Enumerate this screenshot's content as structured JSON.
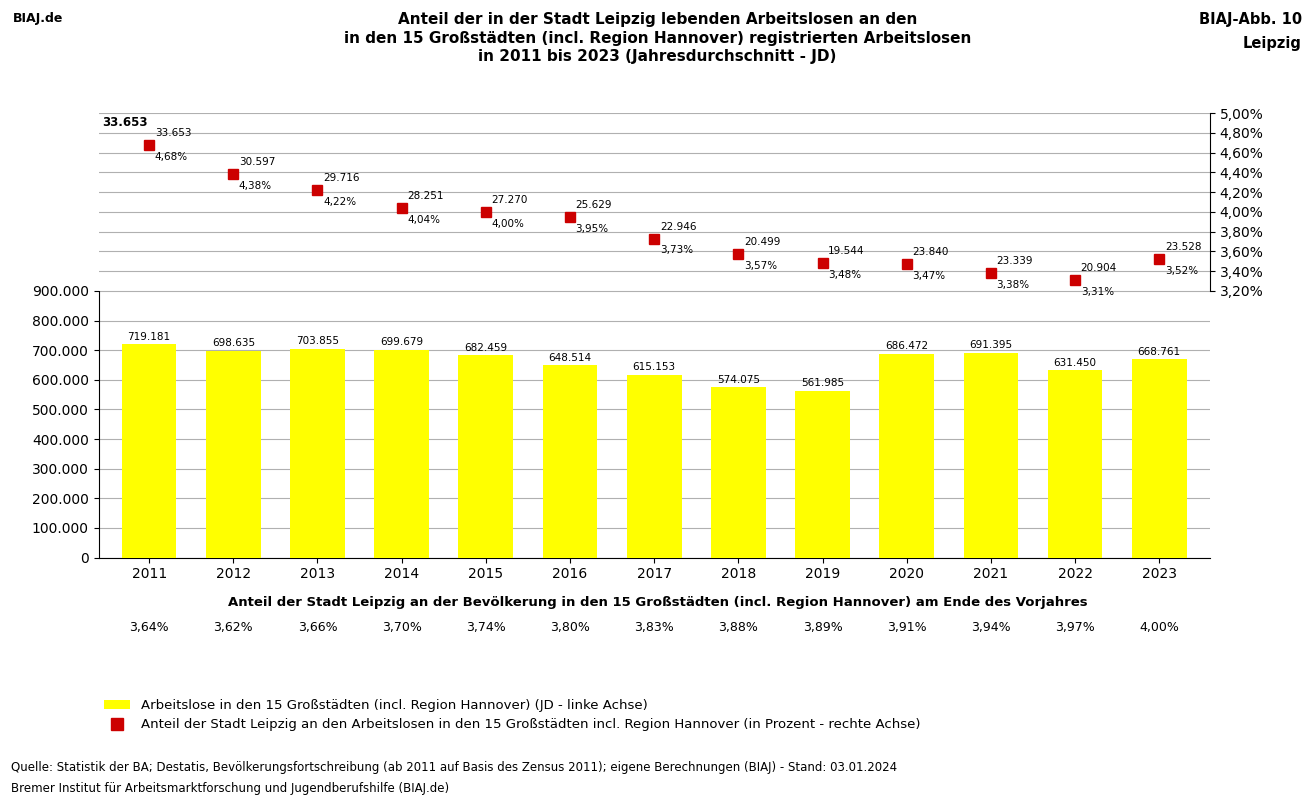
{
  "chart_data": [
    {
      "type": "bar",
      "title": "Anteil der in der Stadt Leipzig lebenden Arbeitslosen an den\nin den 15 Großstädten (incl. Region Hannover) registrierten Arbeitslosen\nin 2011 bis 2023 (Jahresdurchschnitt - JD)",
      "categories": [
        "2011",
        "2012",
        "2013",
        "2014",
        "2015",
        "2016",
        "2017",
        "2018",
        "2019",
        "2020",
        "2021",
        "2022",
        "2023"
      ],
      "series": [
        {
          "name": "Arbeitslose in den 15 Großstädten (incl. Region Hannover) (JD - linke Achse)",
          "color": "#FFFF00",
          "values": [
            719181,
            698635,
            703855,
            699679,
            682459,
            648514,
            615153,
            574075,
            561985,
            686472,
            691395,
            631450,
            668761
          ],
          "value_labels": [
            "719.181",
            "698.635",
            "703.855",
            "699.679",
            "682.459",
            "648.514",
            "615.153",
            "574.075",
            "561.985",
            "686.472",
            "691.395",
            "631.450",
            "668.761"
          ]
        }
      ],
      "ylim": [
        0,
        900000
      ],
      "yticks": [
        0,
        {
          "value": 100000,
          "label": "100.000"
        },
        {
          "value": 200000,
          "label": "200.000"
        },
        {
          "value": 300000,
          "label": "300.000"
        },
        {
          "value": 400000,
          "label": "400.000"
        },
        {
          "value": 500000,
          "label": "500.000"
        },
        {
          "value": 600000,
          "label": "600.000"
        },
        {
          "value": 700000,
          "label": "700.000"
        },
        {
          "value": 800000,
          "label": "800.000"
        },
        {
          "value": 900000,
          "label": "900.000"
        }
      ],
      "grid": true,
      "data_labels": true,
      "legend": "lower left",
      "population_share": {
        "title": "Anteil der Stadt Leipzig an der Bevölkerung in den 15 Großstädten (incl. Region Hannover) am Ende des Vorjahres",
        "values": [
          3.64,
          3.62,
          3.66,
          3.7,
          3.74,
          3.8,
          3.83,
          3.88,
          3.89,
          3.91,
          3.94,
          3.97,
          4.0
        ],
        "value_labels": [
          "3,64%",
          "3,62%",
          "3,66%",
          "3,70%",
          "3,74%",
          "3,80%",
          "3,83%",
          "3,88%",
          "3,89%",
          "3,91%",
          "3,94%",
          "3,97%",
          "4,00%"
        ]
      },
      "annotations": [
        "BIAJ-Abb. 10",
        "Leipzig",
        "BIAJ.de",
        "Quelle: Statistik der BA; Destatis, Bevölkerungsfortschreibung (ab 2011 auf Basis des Zensus 2011); eigene Berechnungen (BIAJ) - Stand: 03.01.2024",
        "Bremer Institut für Arbeitsmarktforschung und Jugendberufshilfe (BIAJ.de)"
      ]
    },
    {
      "type": "scatter",
      "categories": [
        "2011",
        "2012",
        "2013",
        "2014",
        "2015",
        "2016",
        "2017",
        "2018",
        "2019",
        "2020",
        "2021",
        "2022",
        "2023"
      ],
      "series": [
        {
          "name": "Anteil der Stadt Leipzig an den Arbeitslosen in den 15 Großstädten incl. Region Hannover (in Prozent - rechte Achse)",
          "color": "#CC0000",
          "marker": "square",
          "values": [
            4.68,
            4.38,
            4.22,
            4.04,
            4.0,
            3.95,
            3.73,
            3.57,
            3.48,
            3.47,
            3.38,
            3.31,
            3.52
          ],
          "value_labels": [
            "4,68%",
            "4,38%",
            "4,22%",
            "4,04%",
            "4,00%",
            "3,95%",
            "3,73%",
            "3,57%",
            "3,48%",
            "3,47%",
            "3,38%",
            "3,31%",
            "3,52%"
          ]
        }
      ],
      "ylim": [
        3.2,
        5.0
      ],
      "yticks": [
        {
          "value": 3.2,
          "label": "3,20%"
        },
        {
          "value": 3.4,
          "label": "3,40%"
        },
        {
          "value": 3.6,
          "label": "3,60%"
        },
        {
          "value": 3.8,
          "label": "3,80%"
        },
        {
          "value": 4.0,
          "label": "4,00%"
        },
        {
          "value": 4.2,
          "label": "4,20%"
        },
        {
          "value": 4.4,
          "label": "4,40%"
        },
        {
          "value": 4.6,
          "label": "4,60%"
        },
        {
          "value": 4.8,
          "label": "4,80%"
        },
        {
          "value": 5.0,
          "label": "5,00%"
        }
      ],
      "grid": true,
      "data_labels": true,
      "tick_labels": "y",
      "unemployed": {
        "values": [
          33653,
          30597,
          29716,
          28251,
          27270,
          25629,
          22946,
          20499,
          19544,
          23840,
          23339,
          20904,
          23528
        ],
        "value_labels": [
          "33.653",
          "30.597",
          "29.716",
          "28.251",
          "27.270",
          "25.629",
          "22.946",
          "20.499",
          "19.544",
          "23.840",
          "23.339",
          "20.904",
          "23.528"
        ]
      },
      "annotations": [
        "33.653"
      ]
    }
  ]
}
